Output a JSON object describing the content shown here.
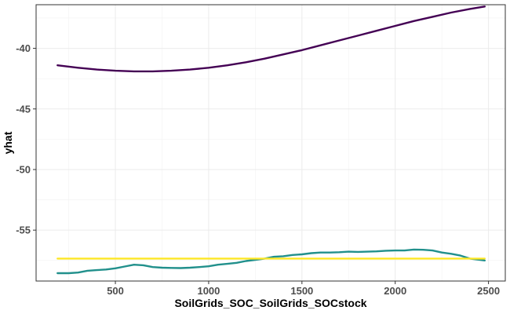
{
  "chart_data": {
    "type": "line",
    "title": "",
    "xlabel": "SoilGrids_SOC_SoilGrids_SOCstock",
    "ylabel": "yhat",
    "xlim": [
      75,
      2590
    ],
    "ylim": [
      -59.2,
      -36.4
    ],
    "x_ticks": [
      500,
      1000,
      1500,
      2000,
      2500
    ],
    "y_ticks": [
      -40,
      -45,
      -50,
      -55
    ],
    "x_tick_labels": [
      "500",
      "1000",
      "1500",
      "2000",
      "2500"
    ],
    "y_tick_labels": [
      "-40",
      "-45",
      "-50",
      "-55"
    ],
    "grid": true,
    "legend": "none",
    "series": [
      {
        "color": "#440154",
        "x": [
          190,
          300,
          400,
          500,
          600,
          700,
          800,
          900,
          1000,
          1100,
          1200,
          1300,
          1400,
          1500,
          1600,
          1700,
          1800,
          1900,
          2000,
          2100,
          2200,
          2300,
          2400,
          2480
        ],
        "y": [
          -41.4,
          -41.6,
          -41.75,
          -41.85,
          -41.9,
          -41.9,
          -41.85,
          -41.75,
          -41.6,
          -41.4,
          -41.15,
          -40.85,
          -40.5,
          -40.15,
          -39.75,
          -39.35,
          -38.95,
          -38.55,
          -38.15,
          -37.75,
          -37.4,
          -37.05,
          -36.75,
          -36.55
        ]
      },
      {
        "color": "#21908c",
        "x": [
          190,
          250,
          300,
          350,
          400,
          450,
          500,
          550,
          600,
          650,
          700,
          750,
          800,
          850,
          900,
          950,
          1000,
          1050,
          1100,
          1150,
          1200,
          1250,
          1300,
          1350,
          1400,
          1450,
          1500,
          1550,
          1600,
          1650,
          1700,
          1750,
          1800,
          1850,
          1900,
          1950,
          2000,
          2050,
          2100,
          2150,
          2200,
          2250,
          2300,
          2350,
          2400,
          2480
        ],
        "y": [
          -58.55,
          -58.55,
          -58.5,
          -58.35,
          -58.3,
          -58.25,
          -58.15,
          -58.0,
          -57.85,
          -57.9,
          -58.05,
          -58.1,
          -58.12,
          -58.13,
          -58.1,
          -58.05,
          -57.98,
          -57.85,
          -57.78,
          -57.7,
          -57.55,
          -57.45,
          -57.35,
          -57.2,
          -57.15,
          -57.05,
          -57.0,
          -56.9,
          -56.85,
          -56.85,
          -56.82,
          -56.78,
          -56.8,
          -56.78,
          -56.75,
          -56.7,
          -56.68,
          -56.68,
          -56.6,
          -56.62,
          -56.68,
          -56.85,
          -56.95,
          -57.1,
          -57.35,
          -57.5
        ]
      },
      {
        "color": "#fde725",
        "x": [
          190,
          2480
        ],
        "y": [
          -57.35,
          -57.35
        ]
      }
    ]
  }
}
